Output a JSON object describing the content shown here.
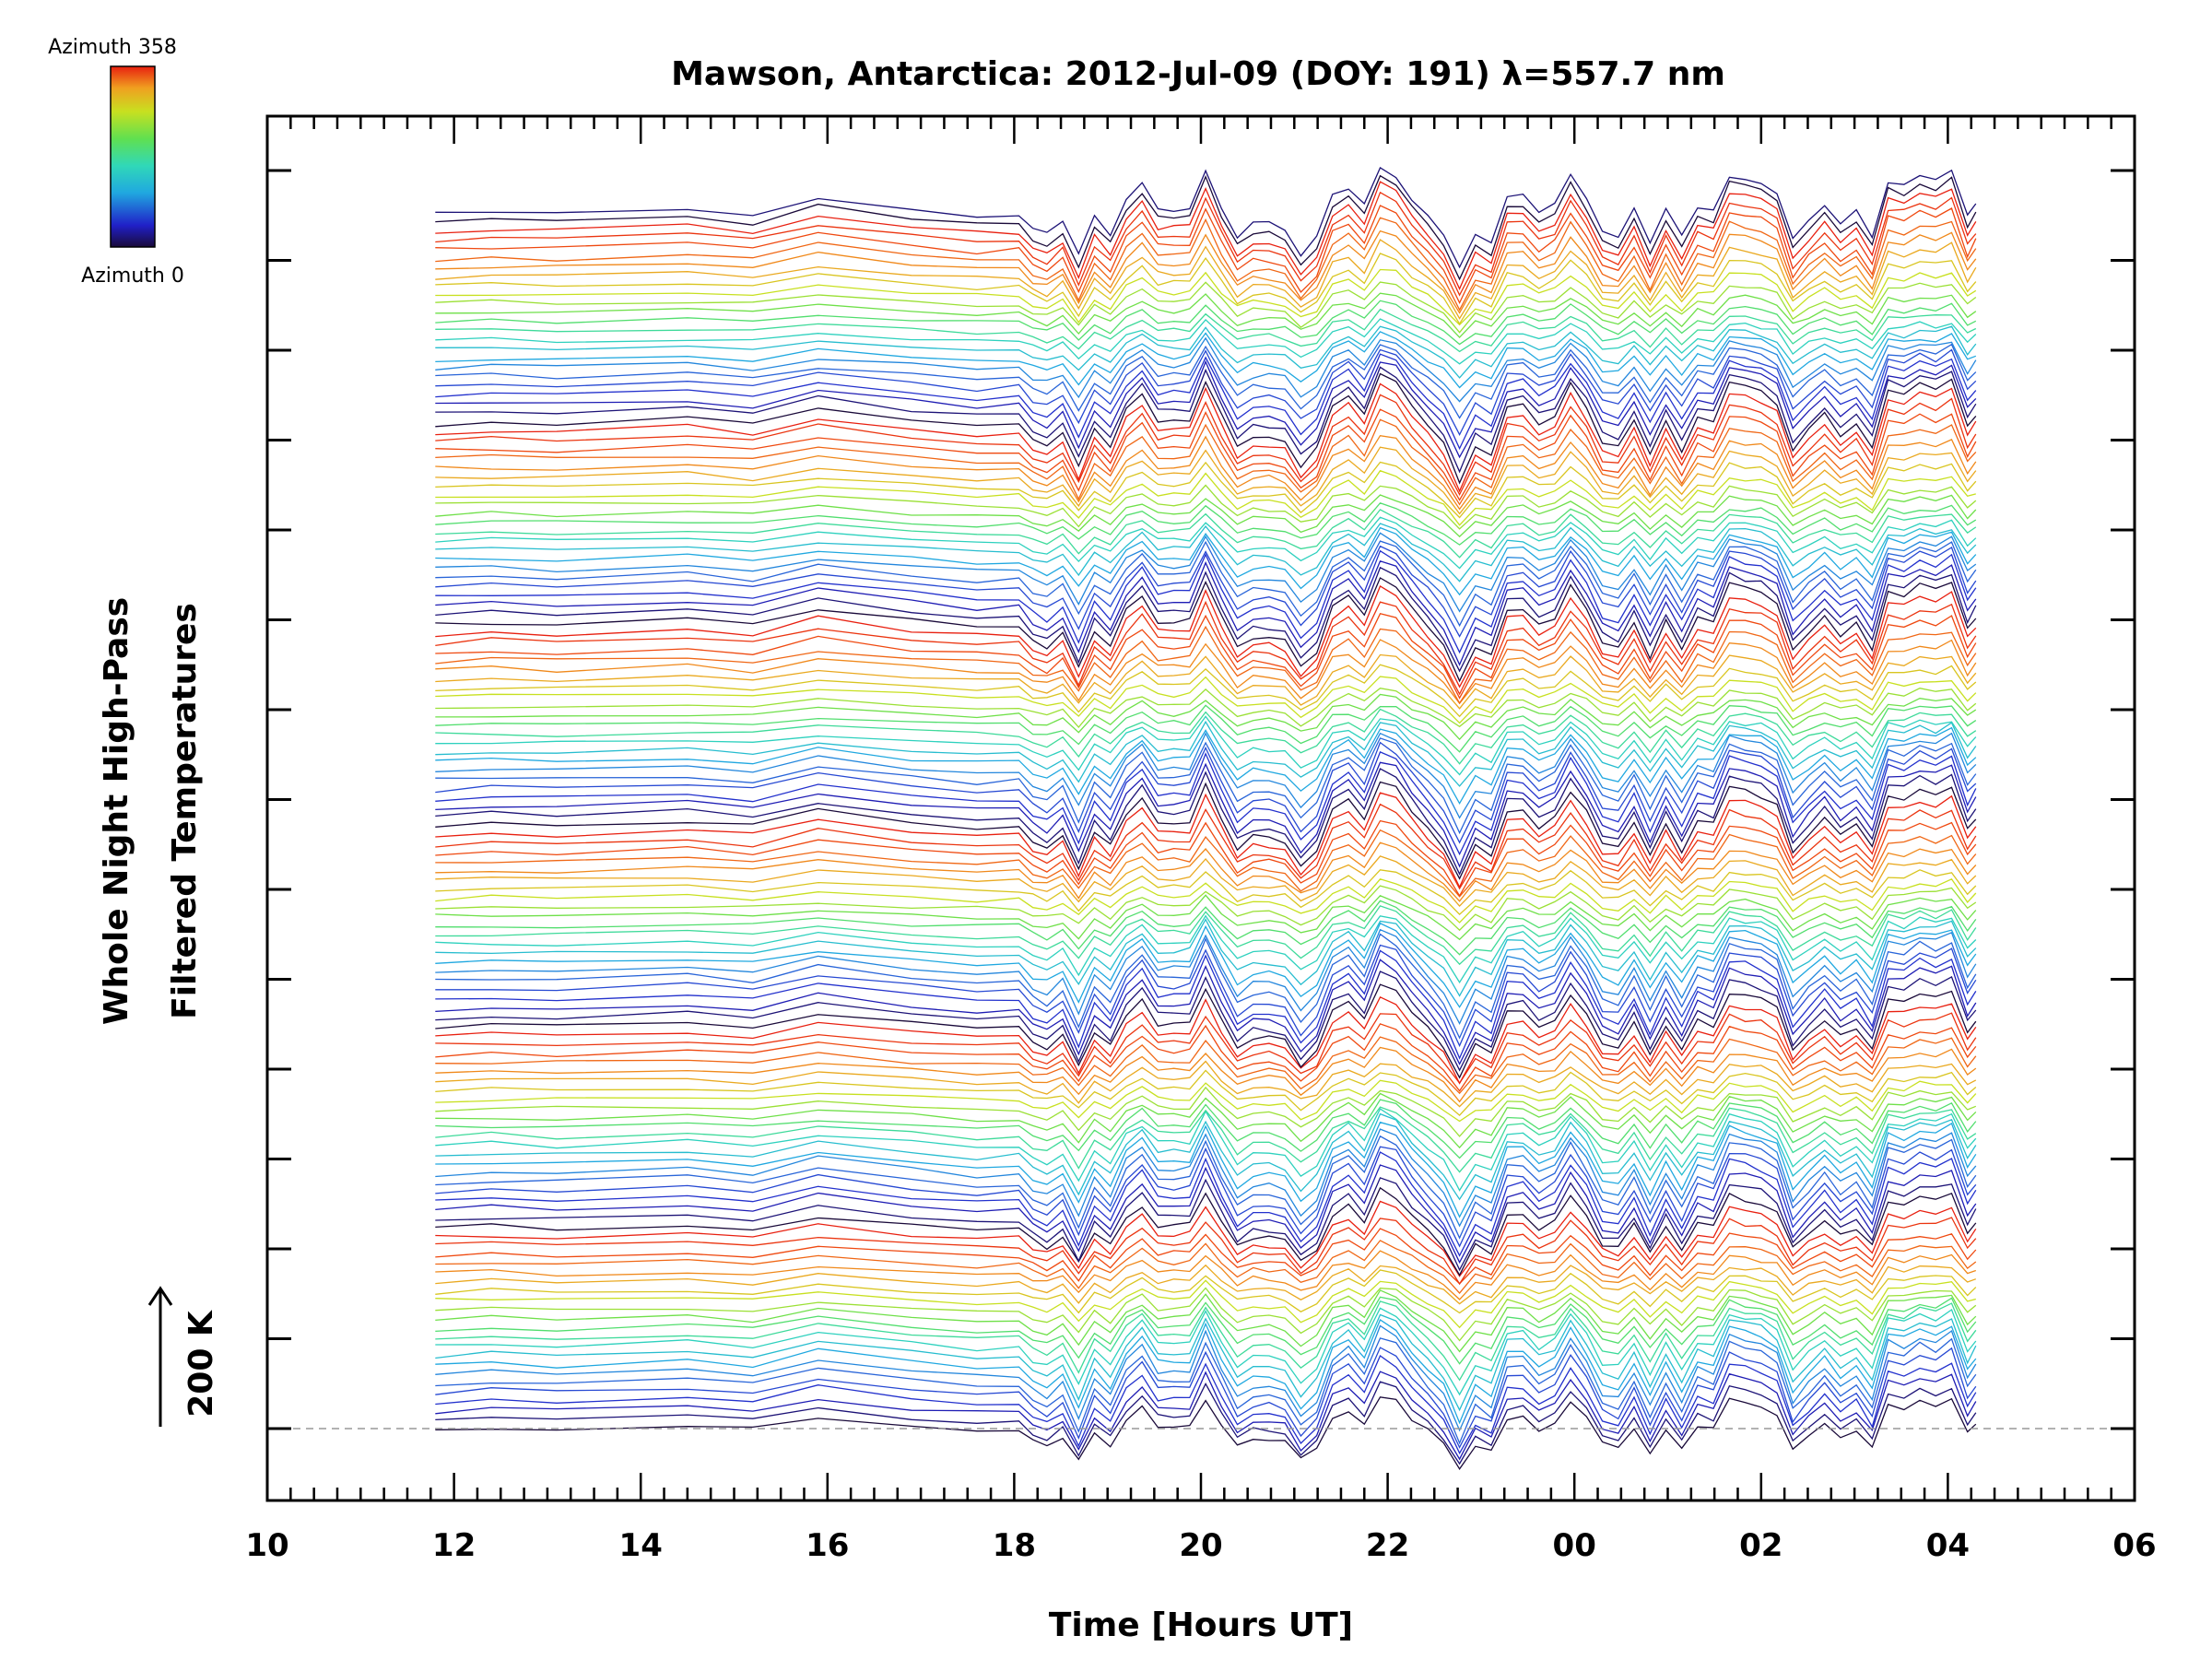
{
  "chart_data": {
    "type": "line",
    "title": "Mawson, Antarctica: 2012-Jul-09 (DOY: 191) λ=557.7 nm",
    "xlabel": "Time [Hours UT]",
    "ylabel_line1": "Whole Night High-Pass",
    "ylabel_line2": "Filtered Temperatures",
    "scale_label": "200 K",
    "x_ticks": [
      "10",
      "12",
      "14",
      "16",
      "18",
      "20",
      "22",
      "00",
      "02",
      "04",
      "06"
    ],
    "x_range_hours_ut": [
      10,
      30
    ],
    "data_range_hours_ut": [
      11.8,
      28.3
    ],
    "colorbar": {
      "top_label": "Azimuth 358",
      "bottom_label": "Azimuth 0",
      "colormap": "rainbow",
      "min": 0,
      "max": 358
    },
    "series_count": 134,
    "azimuth_colors": [
      "#1a0a3a",
      "#2020c8",
      "#2a5ad8",
      "#20a8e0",
      "#30d8b8",
      "#60e050",
      "#c8e020",
      "#f0a020",
      "#f05010",
      "#e82010"
    ],
    "baseline_style": "dashed",
    "grid": false,
    "legend": "colorbar top-left"
  }
}
